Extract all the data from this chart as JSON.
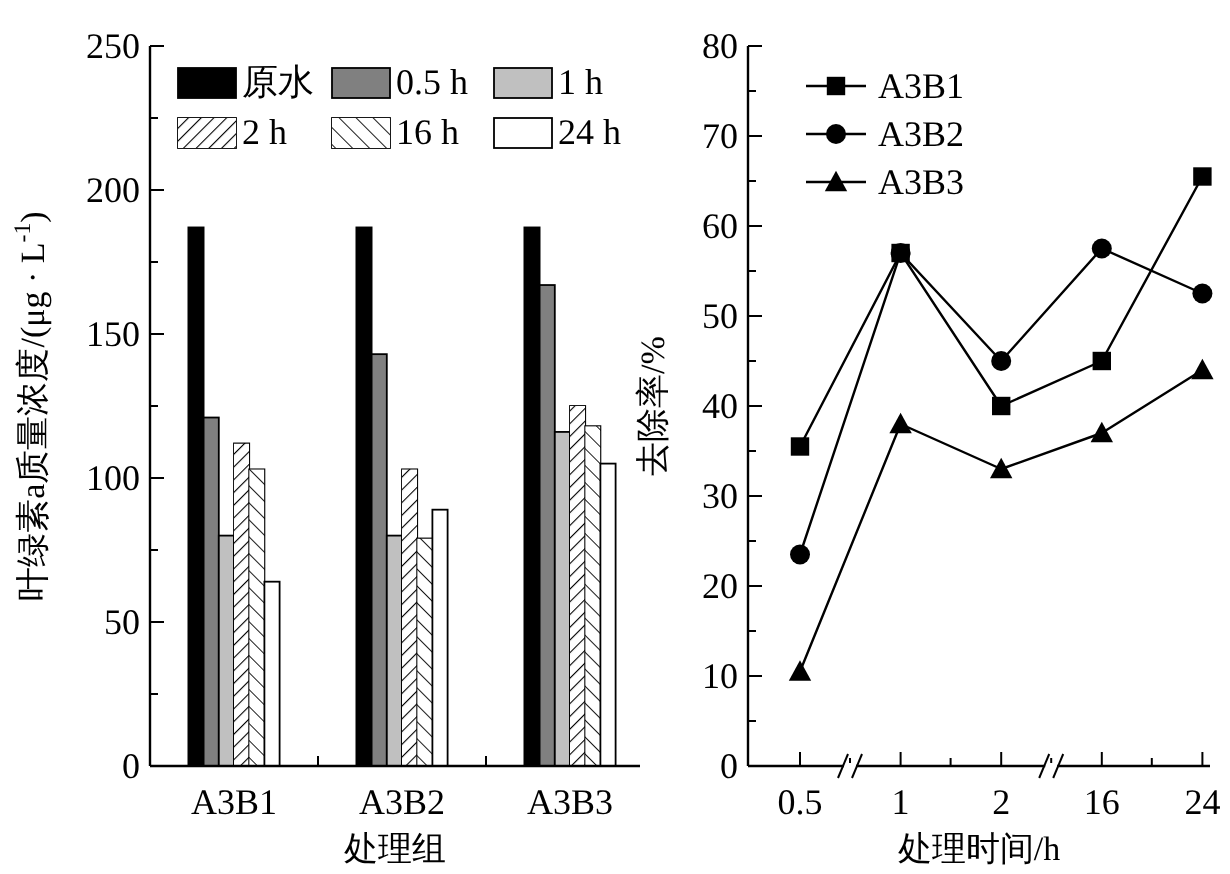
{
  "chart_data": [
    {
      "type": "bar",
      "xlabel": "处理组",
      "ylabel": "叶绿素a质量浓度/(μg · L$^{-1}$)",
      "categories": [
        "A3B1",
        "A3B2",
        "A3B3"
      ],
      "series": [
        {
          "name": "原水",
          "color": "#000000",
          "values": [
            187,
            187,
            187
          ]
        },
        {
          "name": "0.5 h",
          "color": "#808080",
          "values": [
            121,
            143,
            167
          ]
        },
        {
          "name": "1 h",
          "color": "#c0c0c0",
          "values": [
            80,
            80,
            116
          ]
        },
        {
          "name": "2 h",
          "color": "#ffffff",
          "values": [
            112,
            103,
            125
          ]
        },
        {
          "name": "16 h",
          "color": "#ffffff",
          "values": [
            103,
            79,
            118
          ]
        },
        {
          "name": "24 h",
          "color": "#ffffff",
          "values": [
            64,
            89,
            105
          ]
        }
      ],
      "ylim": [
        0,
        250
      ],
      "yticks": [
        0,
        50,
        100,
        150,
        200,
        250
      ],
      "legend": "top"
    },
    {
      "type": "line",
      "xlabel": "处理时间/h",
      "ylabel": "去除率/%",
      "categories": [
        "0.5",
        "1",
        "2",
        "16",
        "24"
      ],
      "series": [
        {
          "name": "A3B1",
          "color": "#000000",
          "marker": "square",
          "values": [
            35.5,
            57,
            40,
            45,
            65.5
          ]
        },
        {
          "name": "A3B2",
          "color": "#000000",
          "marker": "circle",
          "values": [
            23.5,
            57,
            45,
            57.5,
            52.5
          ]
        },
        {
          "name": "A3B3",
          "color": "#000000",
          "marker": "triangle",
          "values": [
            10.5,
            38,
            33,
            37,
            44
          ]
        }
      ],
      "ylim": [
        0,
        80
      ],
      "yticks": [
        0,
        10,
        20,
        30,
        40,
        50,
        60,
        70,
        80
      ],
      "legend": "top left"
    }
  ]
}
